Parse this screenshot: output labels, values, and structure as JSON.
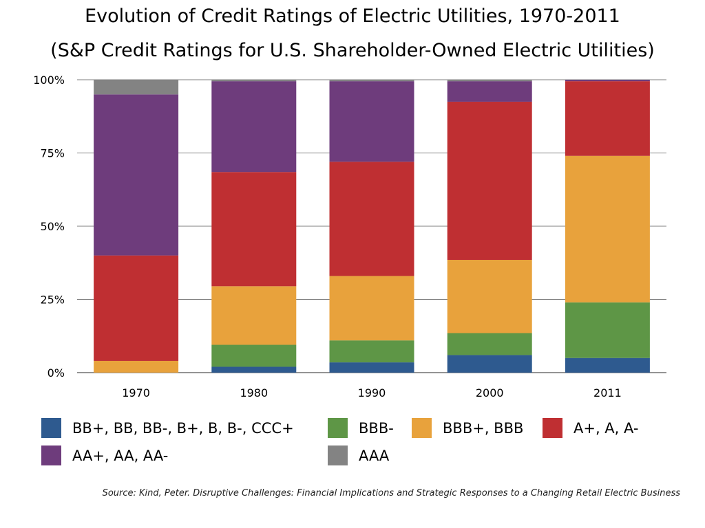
{
  "title_line1": "Evolution of Credit Ratings of Electric Utilities, 1970-2011",
  "title_line2": "(S&P Credit Ratings for U.S. Shareholder-Owned Electric Utilities)",
  "source": "Source: Kind, Peter. Disruptive Challenges: Financial Implications and Strategic Responses to a Changing Retail Electric Business",
  "chart_data": {
    "type": "bar",
    "stacked": true,
    "categories": [
      "1970",
      "1980",
      "1990",
      "2000",
      "2011"
    ],
    "ylim": [
      0,
      100
    ],
    "y_ticks": [
      0,
      25,
      50,
      75,
      100
    ],
    "y_tick_labels": [
      "0%",
      "25%",
      "50%",
      "75%",
      "100%"
    ],
    "grid": true,
    "legend_position": "bottom",
    "series": [
      {
        "name": "BB+, BB, BB-, B+, B, B-, CCC+",
        "color": "#2e5a8f",
        "values": [
          0,
          2,
          3.5,
          6,
          5
        ]
      },
      {
        "name": "BBB-",
        "color": "#5e9646",
        "values": [
          0,
          7.5,
          7.5,
          7.5,
          19
        ]
      },
      {
        "name": "BBB+, BBB",
        "color": "#e8a23c",
        "values": [
          4,
          20,
          22,
          25,
          50
        ]
      },
      {
        "name": "A+, A, A-",
        "color": "#bf2f32",
        "values": [
          36,
          39,
          39,
          54,
          25.5
        ]
      },
      {
        "name": "AA+, AA, AA-",
        "color": "#6e3c7c",
        "values": [
          55,
          31,
          27.5,
          7,
          0.5
        ]
      },
      {
        "name": "AAA",
        "color": "#838383",
        "values": [
          5,
          0.5,
          0.5,
          0.5,
          0
        ]
      }
    ]
  }
}
